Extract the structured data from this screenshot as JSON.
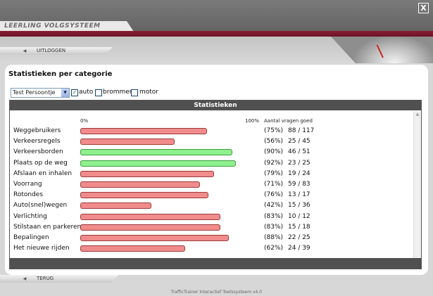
{
  "window": {
    "close_label": "X"
  },
  "brand": {
    "logo_text": "LEERLING VOLGSYSTEEM"
  },
  "nav": {
    "logout_label": "UITLOGGEN",
    "back_label": "TERUG"
  },
  "page": {
    "title": "Statistieken per categorie"
  },
  "filters": {
    "selected_person": "Test Persoontje",
    "checkboxes": [
      {
        "label": "auto",
        "checked": true
      },
      {
        "label": "brommer",
        "checked": false
      },
      {
        "label": "motor",
        "checked": false
      }
    ]
  },
  "stats": {
    "header": "Statistieken",
    "axis_start": "0%",
    "axis_end": "100%",
    "answers_header": "Aantal vragen goed",
    "colors": {
      "low": "#f08c8c",
      "high": "#8ef08e"
    },
    "rows": [
      {
        "category": "Weggebruikers",
        "percent": 75,
        "percent_text": "(75%)",
        "score": "88 / 117",
        "high": false
      },
      {
        "category": "Verkeersregels",
        "percent": 56,
        "percent_text": "(56%)",
        "score": "25 / 45",
        "high": false
      },
      {
        "category": "Verkeersborden",
        "percent": 90,
        "percent_text": "(90%)",
        "score": "46 / 51",
        "high": true
      },
      {
        "category": "Plaats op de weg",
        "percent": 92,
        "percent_text": "(92%)",
        "score": "23 / 25",
        "high": true
      },
      {
        "category": "Afslaan en inhalen",
        "percent": 79,
        "percent_text": "(79%)",
        "score": "19 / 24",
        "high": false
      },
      {
        "category": "Voorrang",
        "percent": 71,
        "percent_text": "(71%)",
        "score": "59 / 83",
        "high": false
      },
      {
        "category": "Rotondes",
        "percent": 76,
        "percent_text": "(76%)",
        "score": "13 / 17",
        "high": false
      },
      {
        "category": "Auto(snel)wegen",
        "percent": 42,
        "percent_text": "(42%)",
        "score": "15 / 36",
        "high": false
      },
      {
        "category": "Verlichting",
        "percent": 83,
        "percent_text": "(83%)",
        "score": "10 / 12",
        "high": false
      },
      {
        "category": "Stilstaan en parkeren",
        "percent": 83,
        "percent_text": "(83%)",
        "score": "15 / 18",
        "high": false
      },
      {
        "category": "Bepalingen",
        "percent": 88,
        "percent_text": "(88%)",
        "score": "22 / 25",
        "high": false
      },
      {
        "category": "Het nieuwe rijden",
        "percent": 62,
        "percent_text": "(62%)",
        "score": "24 / 39",
        "high": false
      }
    ]
  },
  "footer": {
    "text": "TrafficTrainer Interactief Toetssysteem v4.0"
  }
}
